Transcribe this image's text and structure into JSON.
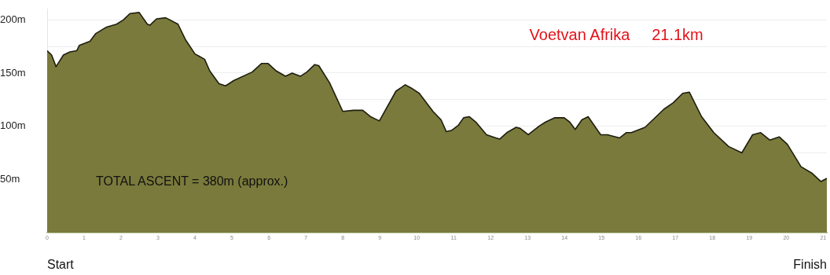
{
  "chart_data": {
    "type": "area",
    "title": "Voetvan Afrika     21.1km",
    "annotations": [
      "TOTAL ASCENT = 380m (approx.)",
      "Start",
      "Finish"
    ],
    "x": [
      0,
      0.12,
      0.24,
      0.44,
      0.62,
      0.8,
      0.87,
      1.02,
      1.16,
      1.31,
      1.59,
      1.88,
      2.06,
      2.24,
      2.49,
      2.71,
      2.78,
      2.96,
      3.21,
      3.54,
      3.75,
      4.0,
      4.26,
      4.4,
      4.65,
      4.83,
      5.05,
      5.55,
      5.8,
      5.98,
      6.2,
      6.45,
      6.63,
      6.85,
      7.03,
      7.24,
      7.35,
      7.64,
      8.0,
      8.29,
      8.54,
      8.75,
      8.99,
      9.44,
      9.69,
      9.85,
      10.07,
      10.44,
      10.66,
      10.8,
      10.94,
      11.13,
      11.27,
      11.42,
      11.6,
      11.89,
      12.14,
      12.25,
      12.44,
      12.69,
      12.8,
      13.02,
      13.31,
      13.49,
      13.74,
      13.99,
      14.14,
      14.29,
      14.47,
      14.64,
      14.98,
      15.16,
      15.49,
      15.67,
      15.81,
      16.18,
      16.69,
      16.94,
      17.2,
      17.38,
      17.71,
      18.04,
      18.44,
      18.8,
      19.09,
      19.31,
      19.56,
      19.81,
      20.03,
      20.4,
      20.69,
      20.94,
      21.1
    ],
    "series": [
      {
        "color": "#7a7a3c",
        "values": [
          171,
          167,
          156,
          167,
          170,
          171,
          176,
          178,
          180,
          187,
          193,
          196,
          200,
          206,
          207,
          196,
          195,
          201,
          202,
          196,
          181,
          168,
          163,
          152,
          140,
          138,
          143,
          151,
          159,
          159,
          152,
          147,
          150,
          147,
          151,
          158,
          157,
          141,
          114,
          115,
          115,
          109,
          105,
          133,
          139,
          136,
          131,
          114,
          106,
          95,
          96,
          101,
          108,
          109,
          104,
          92,
          89,
          88,
          94,
          99,
          98,
          92,
          100,
          104,
          108,
          108,
          104,
          97,
          106,
          109,
          92,
          92,
          89,
          94,
          94,
          99,
          116,
          122,
          131,
          132,
          109,
          94,
          81,
          75,
          92,
          94,
          87,
          90,
          83,
          62,
          56,
          48,
          51
        ]
      }
    ],
    "xlim": [
      0,
      21.1
    ],
    "xticks": [
      0,
      1,
      2,
      3,
      4,
      5,
      6,
      7,
      8,
      9,
      10,
      11,
      12,
      13,
      14,
      15,
      16,
      17,
      18,
      19,
      20,
      21
    ],
    "ylim": [
      0,
      210
    ],
    "yticks": [
      {
        "value": 0,
        "label": null
      },
      {
        "value": 50,
        "label": "50m"
      },
      {
        "value": 75,
        "label": null
      },
      {
        "value": 100,
        "label": "100m"
      },
      {
        "value": 125,
        "label": null
      },
      {
        "value": 150,
        "label": "150m"
      },
      {
        "value": 175,
        "label": null
      },
      {
        "value": 200,
        "label": "200m"
      }
    ],
    "grid": "y",
    "legend": false,
    "marker": "none",
    "line_style": "solid"
  }
}
